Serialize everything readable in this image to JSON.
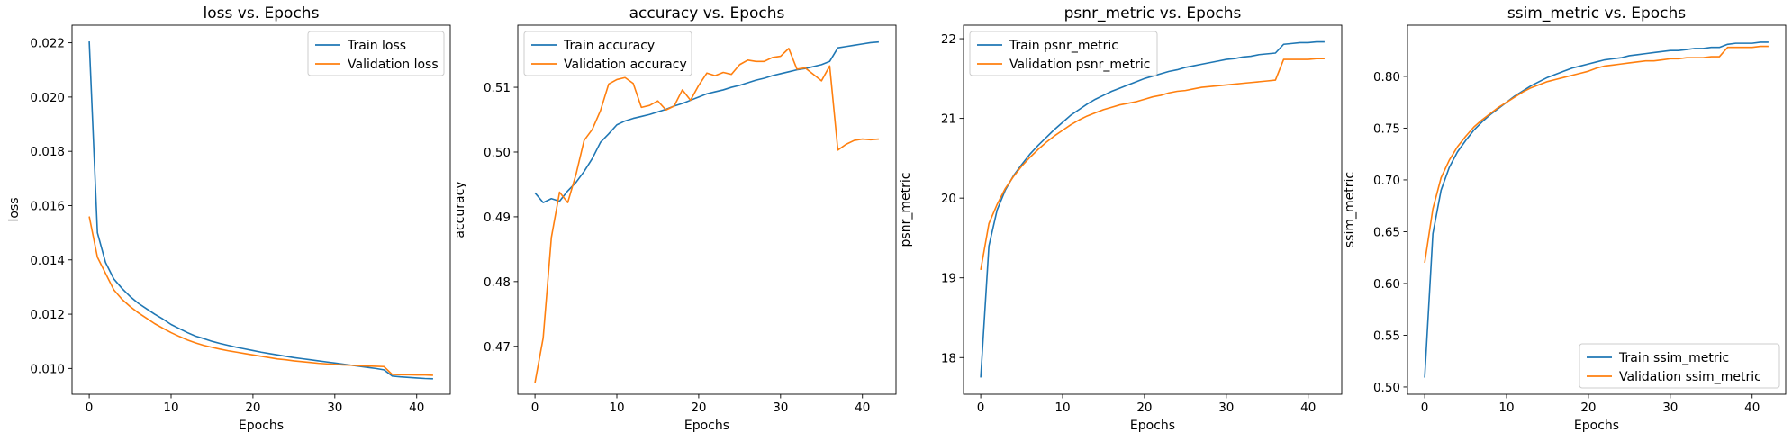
{
  "colors": {
    "train": "#1f77b4",
    "validation": "#ff7f0e"
  },
  "chart_data": [
    {
      "type": "line",
      "title": "loss vs. Epochs",
      "xlabel": "Epochs",
      "ylabel": "loss",
      "xlim": [
        -2.1,
        44.1
      ],
      "ylim": [
        0.00905,
        0.02265
      ],
      "xticks": [
        0,
        10,
        20,
        30,
        40
      ],
      "yticks": [
        0.01,
        0.012,
        0.014,
        0.016,
        0.018,
        0.02,
        0.022
      ],
      "ytick_decimals": 3,
      "legend_position": "top-right",
      "series": [
        {
          "name": "Train loss",
          "color_key": "train",
          "values": [
            0.02205,
            0.015,
            0.0139,
            0.0133,
            0.01295,
            0.01265,
            0.0124,
            0.0122,
            0.012,
            0.01182,
            0.01162,
            0.01147,
            0.01132,
            0.01119,
            0.0111,
            0.011,
            0.01092,
            0.01085,
            0.01078,
            0.01072,
            0.01066,
            0.0106,
            0.01055,
            0.0105,
            0.01045,
            0.0104,
            0.01036,
            0.01032,
            0.01028,
            0.01024,
            0.0102,
            0.01016,
            0.01012,
            0.01008,
            0.01004,
            0.01,
            0.00995,
            0.00972,
            0.00969,
            0.00967,
            0.00965,
            0.00963,
            0.00962
          ]
        },
        {
          "name": "Validation loss",
          "color_key": "validation",
          "values": [
            0.0156,
            0.0141,
            0.0135,
            0.0129,
            0.01255,
            0.01228,
            0.01205,
            0.01185,
            0.01165,
            0.01148,
            0.01132,
            0.01118,
            0.01105,
            0.01094,
            0.01085,
            0.01078,
            0.01071,
            0.01065,
            0.0106,
            0.01055,
            0.0105,
            0.01045,
            0.0104,
            0.01035,
            0.01032,
            0.01028,
            0.01025,
            0.01022,
            0.01019,
            0.01017,
            0.01015,
            0.01013,
            0.01012,
            0.0101,
            0.01009,
            0.01008,
            0.01007,
            0.00978,
            0.00977,
            0.00977,
            0.00976,
            0.00976,
            0.00975
          ]
        }
      ]
    },
    {
      "type": "line",
      "title": "accuracy vs. Epochs",
      "xlabel": "Epochs",
      "ylabel": "accuracy",
      "xlim": [
        -2.1,
        44.1
      ],
      "ylim": [
        0.4626,
        0.5196
      ],
      "xticks": [
        0,
        10,
        20,
        30,
        40
      ],
      "yticks": [
        0.47,
        0.48,
        0.49,
        0.5,
        0.51
      ],
      "ytick_decimals": 2,
      "legend_position": "top-left",
      "series": [
        {
          "name": "Train accuracy",
          "color_key": "train",
          "values": [
            0.4937,
            0.4922,
            0.4928,
            0.4924,
            0.494,
            0.4953,
            0.497,
            0.499,
            0.5015,
            0.5028,
            0.5042,
            0.5048,
            0.5052,
            0.5055,
            0.5058,
            0.5062,
            0.5066,
            0.5071,
            0.5075,
            0.508,
            0.5085,
            0.509,
            0.5093,
            0.5096,
            0.51,
            0.5103,
            0.5107,
            0.5111,
            0.5114,
            0.5118,
            0.5121,
            0.5124,
            0.5127,
            0.5129,
            0.5132,
            0.5135,
            0.514,
            0.5161,
            0.5163,
            0.5165,
            0.5167,
            0.5169,
            0.517
          ]
        },
        {
          "name": "Validation accuracy",
          "color_key": "validation",
          "values": [
            0.4644,
            0.4713,
            0.4868,
            0.4938,
            0.4922,
            0.4965,
            0.5018,
            0.5035,
            0.5064,
            0.5105,
            0.5112,
            0.5115,
            0.5106,
            0.5069,
            0.5072,
            0.5079,
            0.5065,
            0.5071,
            0.5096,
            0.508,
            0.5103,
            0.5122,
            0.5118,
            0.5123,
            0.512,
            0.5135,
            0.5142,
            0.514,
            0.514,
            0.5146,
            0.5148,
            0.516,
            0.5128,
            0.513,
            0.512,
            0.511,
            0.5133,
            0.5003,
            0.5012,
            0.5018,
            0.502,
            0.5019,
            0.502
          ]
        }
      ]
    },
    {
      "type": "line",
      "title": "psnr_metric vs. Epochs",
      "xlabel": "Epochs",
      "ylabel": "psnr_metric",
      "xlim": [
        -2.1,
        44.1
      ],
      "ylim": [
        17.54,
        22.17
      ],
      "xticks": [
        0,
        10,
        20,
        30,
        40
      ],
      "yticks": [
        18,
        19,
        20,
        21,
        22
      ],
      "ytick_decimals": 0,
      "legend_position": "top-left",
      "series": [
        {
          "name": "Train psnr_metric",
          "color_key": "train",
          "values": [
            17.75,
            19.4,
            19.85,
            20.1,
            20.28,
            20.42,
            20.55,
            20.66,
            20.76,
            20.86,
            20.95,
            21.04,
            21.11,
            21.18,
            21.24,
            21.29,
            21.34,
            21.38,
            21.42,
            21.46,
            21.5,
            21.53,
            21.56,
            21.59,
            21.61,
            21.64,
            21.66,
            21.68,
            21.7,
            21.72,
            21.74,
            21.75,
            21.77,
            21.78,
            21.8,
            21.81,
            21.82,
            21.93,
            21.94,
            21.95,
            21.95,
            21.96,
            21.96
          ]
        },
        {
          "name": "Validation psnr_metric",
          "color_key": "validation",
          "values": [
            19.1,
            19.68,
            19.92,
            20.12,
            20.27,
            20.4,
            20.51,
            20.61,
            20.7,
            20.78,
            20.85,
            20.92,
            20.98,
            21.03,
            21.07,
            21.11,
            21.14,
            21.17,
            21.19,
            21.21,
            21.24,
            21.27,
            21.29,
            21.32,
            21.34,
            21.35,
            21.37,
            21.39,
            21.4,
            21.41,
            21.42,
            21.43,
            21.44,
            21.45,
            21.46,
            21.47,
            21.48,
            21.74,
            21.74,
            21.74,
            21.74,
            21.75,
            21.75
          ]
        }
      ]
    },
    {
      "type": "line",
      "title": "ssim_metric vs. Epochs",
      "xlabel": "Epochs",
      "ylabel": "ssim_metric",
      "xlim": [
        -2.1,
        44.1
      ],
      "ylim": [
        0.493,
        0.8495
      ],
      "xticks": [
        0,
        10,
        20,
        30,
        40
      ],
      "yticks": [
        0.5,
        0.55,
        0.6,
        0.65,
        0.7,
        0.75,
        0.8
      ],
      "ytick_decimals": 2,
      "legend_position": "bottom-right",
      "series": [
        {
          "name": "Train ssim_metric",
          "color_key": "train",
          "values": [
            0.509,
            0.648,
            0.69,
            0.712,
            0.727,
            0.738,
            0.748,
            0.756,
            0.763,
            0.769,
            0.775,
            0.781,
            0.786,
            0.791,
            0.795,
            0.799,
            0.802,
            0.805,
            0.808,
            0.81,
            0.812,
            0.814,
            0.816,
            0.817,
            0.818,
            0.82,
            0.821,
            0.822,
            0.823,
            0.824,
            0.825,
            0.825,
            0.826,
            0.827,
            0.827,
            0.828,
            0.828,
            0.831,
            0.832,
            0.832,
            0.832,
            0.833,
            0.833
          ]
        },
        {
          "name": "Validation ssim_metric",
          "color_key": "validation",
          "values": [
            0.62,
            0.672,
            0.702,
            0.719,
            0.732,
            0.742,
            0.751,
            0.758,
            0.764,
            0.77,
            0.775,
            0.78,
            0.785,
            0.789,
            0.792,
            0.795,
            0.797,
            0.799,
            0.801,
            0.803,
            0.805,
            0.808,
            0.81,
            0.811,
            0.812,
            0.813,
            0.814,
            0.815,
            0.815,
            0.816,
            0.817,
            0.817,
            0.818,
            0.818,
            0.818,
            0.819,
            0.819,
            0.828,
            0.828,
            0.828,
            0.828,
            0.829,
            0.829
          ]
        }
      ]
    }
  ]
}
